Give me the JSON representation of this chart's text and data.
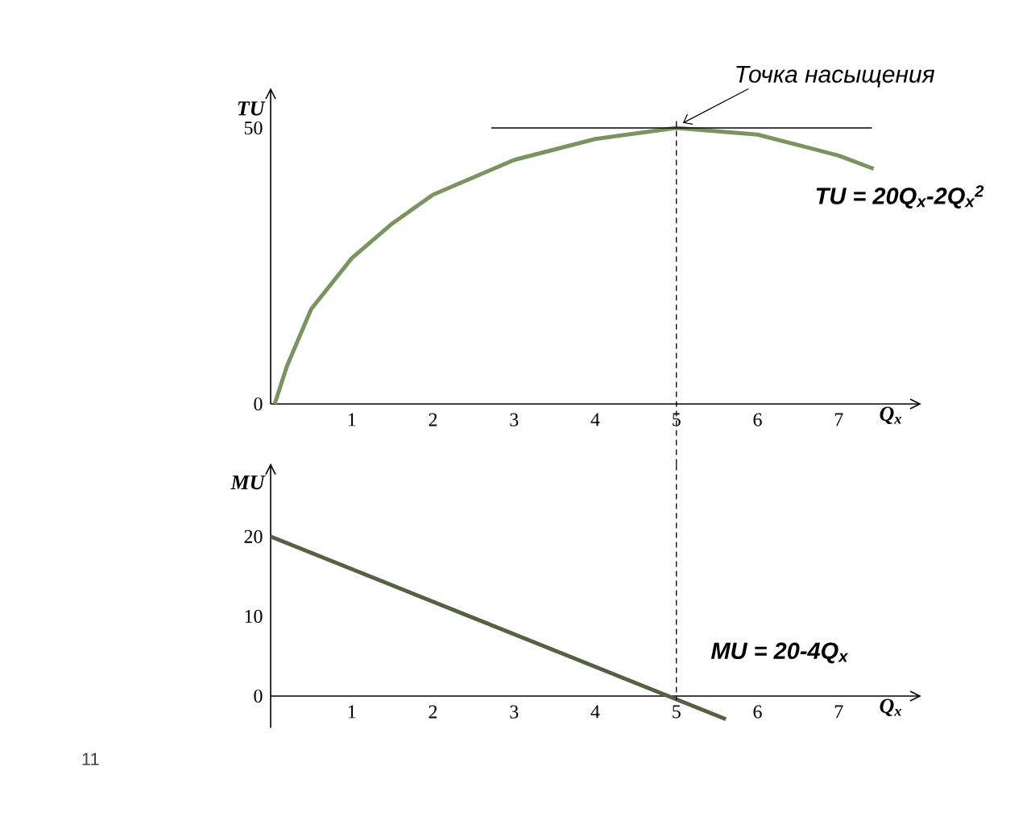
{
  "chart_data": [
    {
      "type": "line",
      "ylabel": "TU",
      "xlabel": "Q$_{x}$",
      "xlim": [
        0,
        8
      ],
      "ylim": [
        0,
        57
      ],
      "xticks": [
        1,
        2,
        3,
        4,
        5,
        6,
        7
      ],
      "yticks": [
        0,
        50
      ],
      "series": [
        {
          "color": "#7a9460",
          "x": [
            0.05,
            0.2,
            0.5,
            1,
            1.5,
            2,
            3,
            4,
            5,
            6,
            7,
            7.43
          ],
          "values": [
            0,
            6.8,
            17.2,
            26.4,
            32.7,
            37.9,
            44.2,
            48,
            50,
            48.8,
            45,
            42.6
          ]
        },
        {
          "color": "#000000",
          "x": [
            2.72,
            7.41
          ],
          "values": [
            50,
            50
          ]
        }
      ],
      "ref_lines": [
        {
          "axis": "x",
          "value": 5,
          "line_style": "dashed",
          "color": "#000000"
        }
      ],
      "annotations": [
        "Точка насыщения",
        "TU = 20Q$_{x}$-2Q$_{x}$$^{2}$"
      ]
    },
    {
      "type": "line",
      "ylabel": "MU",
      "xlabel": "Q$_{x}$",
      "xlim": [
        0,
        8
      ],
      "ylim": [
        -4,
        29
      ],
      "xticks": [
        1,
        2,
        3,
        4,
        5,
        6,
        7
      ],
      "yticks": [
        0,
        10,
        20
      ],
      "series": [
        {
          "color": "#556045",
          "x": [
            0,
            5.61
          ],
          "values": [
            20,
            -2.9
          ]
        }
      ],
      "ref_lines": [
        {
          "axis": "x",
          "value": 5,
          "line_style": "dashed",
          "color": "#000000"
        }
      ],
      "annotations": [
        "MU = 20-4Q$_{x}$",
        "11"
      ]
    }
  ]
}
